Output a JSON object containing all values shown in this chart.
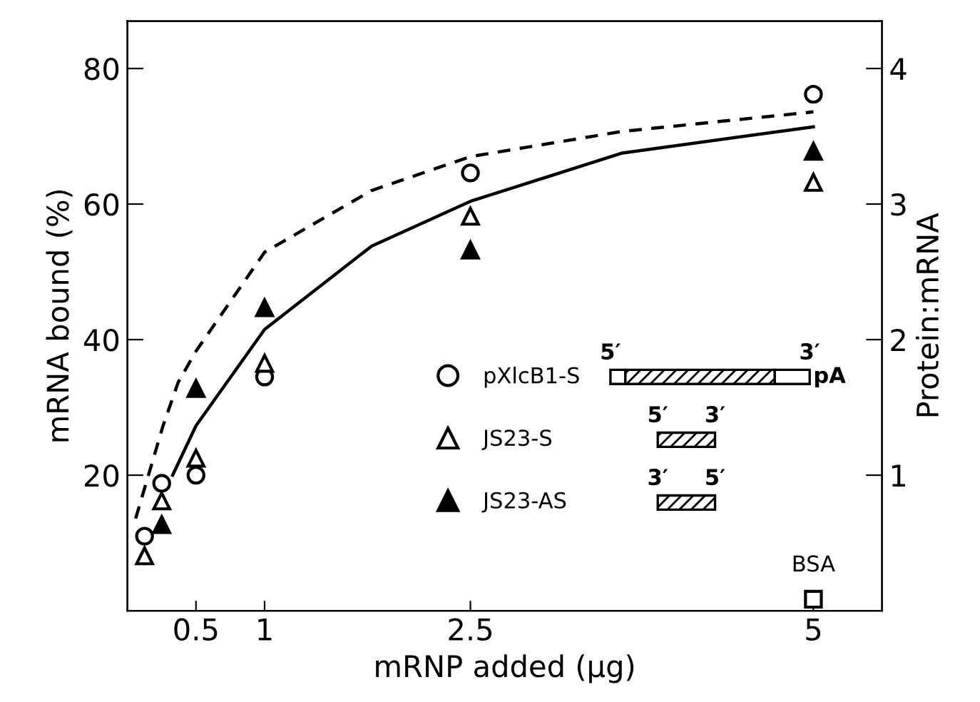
{
  "chart_data": {
    "type": "scatter",
    "xlabel": "mRNP added (μg)",
    "ylabel": "mRNA bound (%)",
    "y2label": "Protein:mRNA",
    "xlim": [
      0,
      5.5
    ],
    "xticks": [
      0.5,
      1,
      2.5,
      5
    ],
    "ylim": [
      0,
      87
    ],
    "yticks": [
      20,
      40,
      60,
      80
    ],
    "y2lim": [
      0,
      4.35
    ],
    "y2ticks": [
      1,
      2,
      3,
      4
    ],
    "grid": false,
    "legend": "right",
    "series": [
      {
        "name": "pXlcB1-S",
        "color": "#000000",
        "marker": "circle-open",
        "x": [
          0.125,
          0.25,
          0.5,
          1,
          2.5,
          5
        ],
        "values": [
          11,
          18.8,
          20,
          34.5,
          64.6,
          76.2
        ]
      },
      {
        "name": "JS23-S",
        "color": "#000000",
        "marker": "triangle-open",
        "x": [
          0.125,
          0.25,
          0.5,
          1,
          2.5,
          5
        ],
        "values": [
          8.1,
          16.2,
          22.5,
          36.5,
          58.2,
          63.2
        ]
      },
      {
        "name": "JS23-AS",
        "color": "#000000",
        "marker": "triangle",
        "x": [
          0.25,
          0.5,
          1,
          2.5,
          5
        ],
        "values": [
          12.7,
          32.8,
          44.7,
          53.2,
          67.8
        ]
      },
      {
        "name": "BSA",
        "color": "#000000",
        "marker": "square-open",
        "x": [
          5
        ],
        "values": [
          1.7
        ]
      },
      {
        "type": "line",
        "color": "#000000",
        "line_style": "solid",
        "x": [
          0.33,
          0.5,
          1,
          1.78,
          2.5,
          3.6,
          5
        ],
        "values": [
          20,
          27.3,
          41.5,
          53.8,
          60.4,
          67.5,
          71.4
        ]
      },
      {
        "type": "line",
        "color": "#000000",
        "line_style": "dashed",
        "x": [
          0.06,
          0.26,
          0.37,
          0.5,
          1,
          1.78,
          2.5,
          3.6,
          5
        ],
        "values": [
          13.6,
          27.3,
          33.7,
          38.3,
          52.9,
          62,
          67,
          70.7,
          73.6
        ]
      }
    ],
    "annotations": [
      "5′",
      "3′",
      "pA",
      "5′",
      "3′",
      "3′",
      "5′"
    ]
  }
}
